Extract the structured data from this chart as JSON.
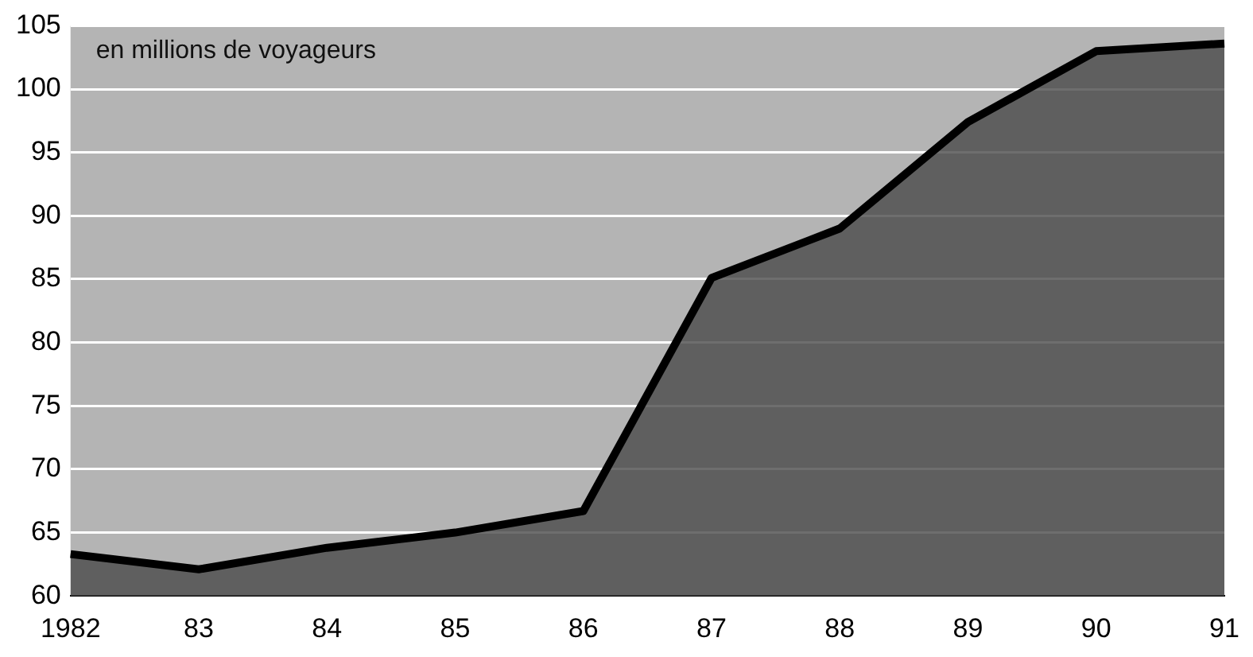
{
  "chart_data": {
    "type": "area",
    "annotations": [
      "en millions de voyageurs"
    ],
    "categories": [
      "1982",
      "83",
      "84",
      "85",
      "86",
      "87",
      "88",
      "89",
      "90",
      "91"
    ],
    "series": [
      {
        "color": "#4a4a4a",
        "values": [
          63.3,
          62.1,
          63.8,
          65,
          66.7,
          85.1,
          89,
          97.4,
          103,
          103.6
        ]
      }
    ],
    "ylim": [
      60,
      105
    ],
    "yticks": [
      60,
      65,
      70,
      75,
      80,
      85,
      90,
      95,
      100,
      105
    ],
    "grid": "y",
    "legend": false
  }
}
